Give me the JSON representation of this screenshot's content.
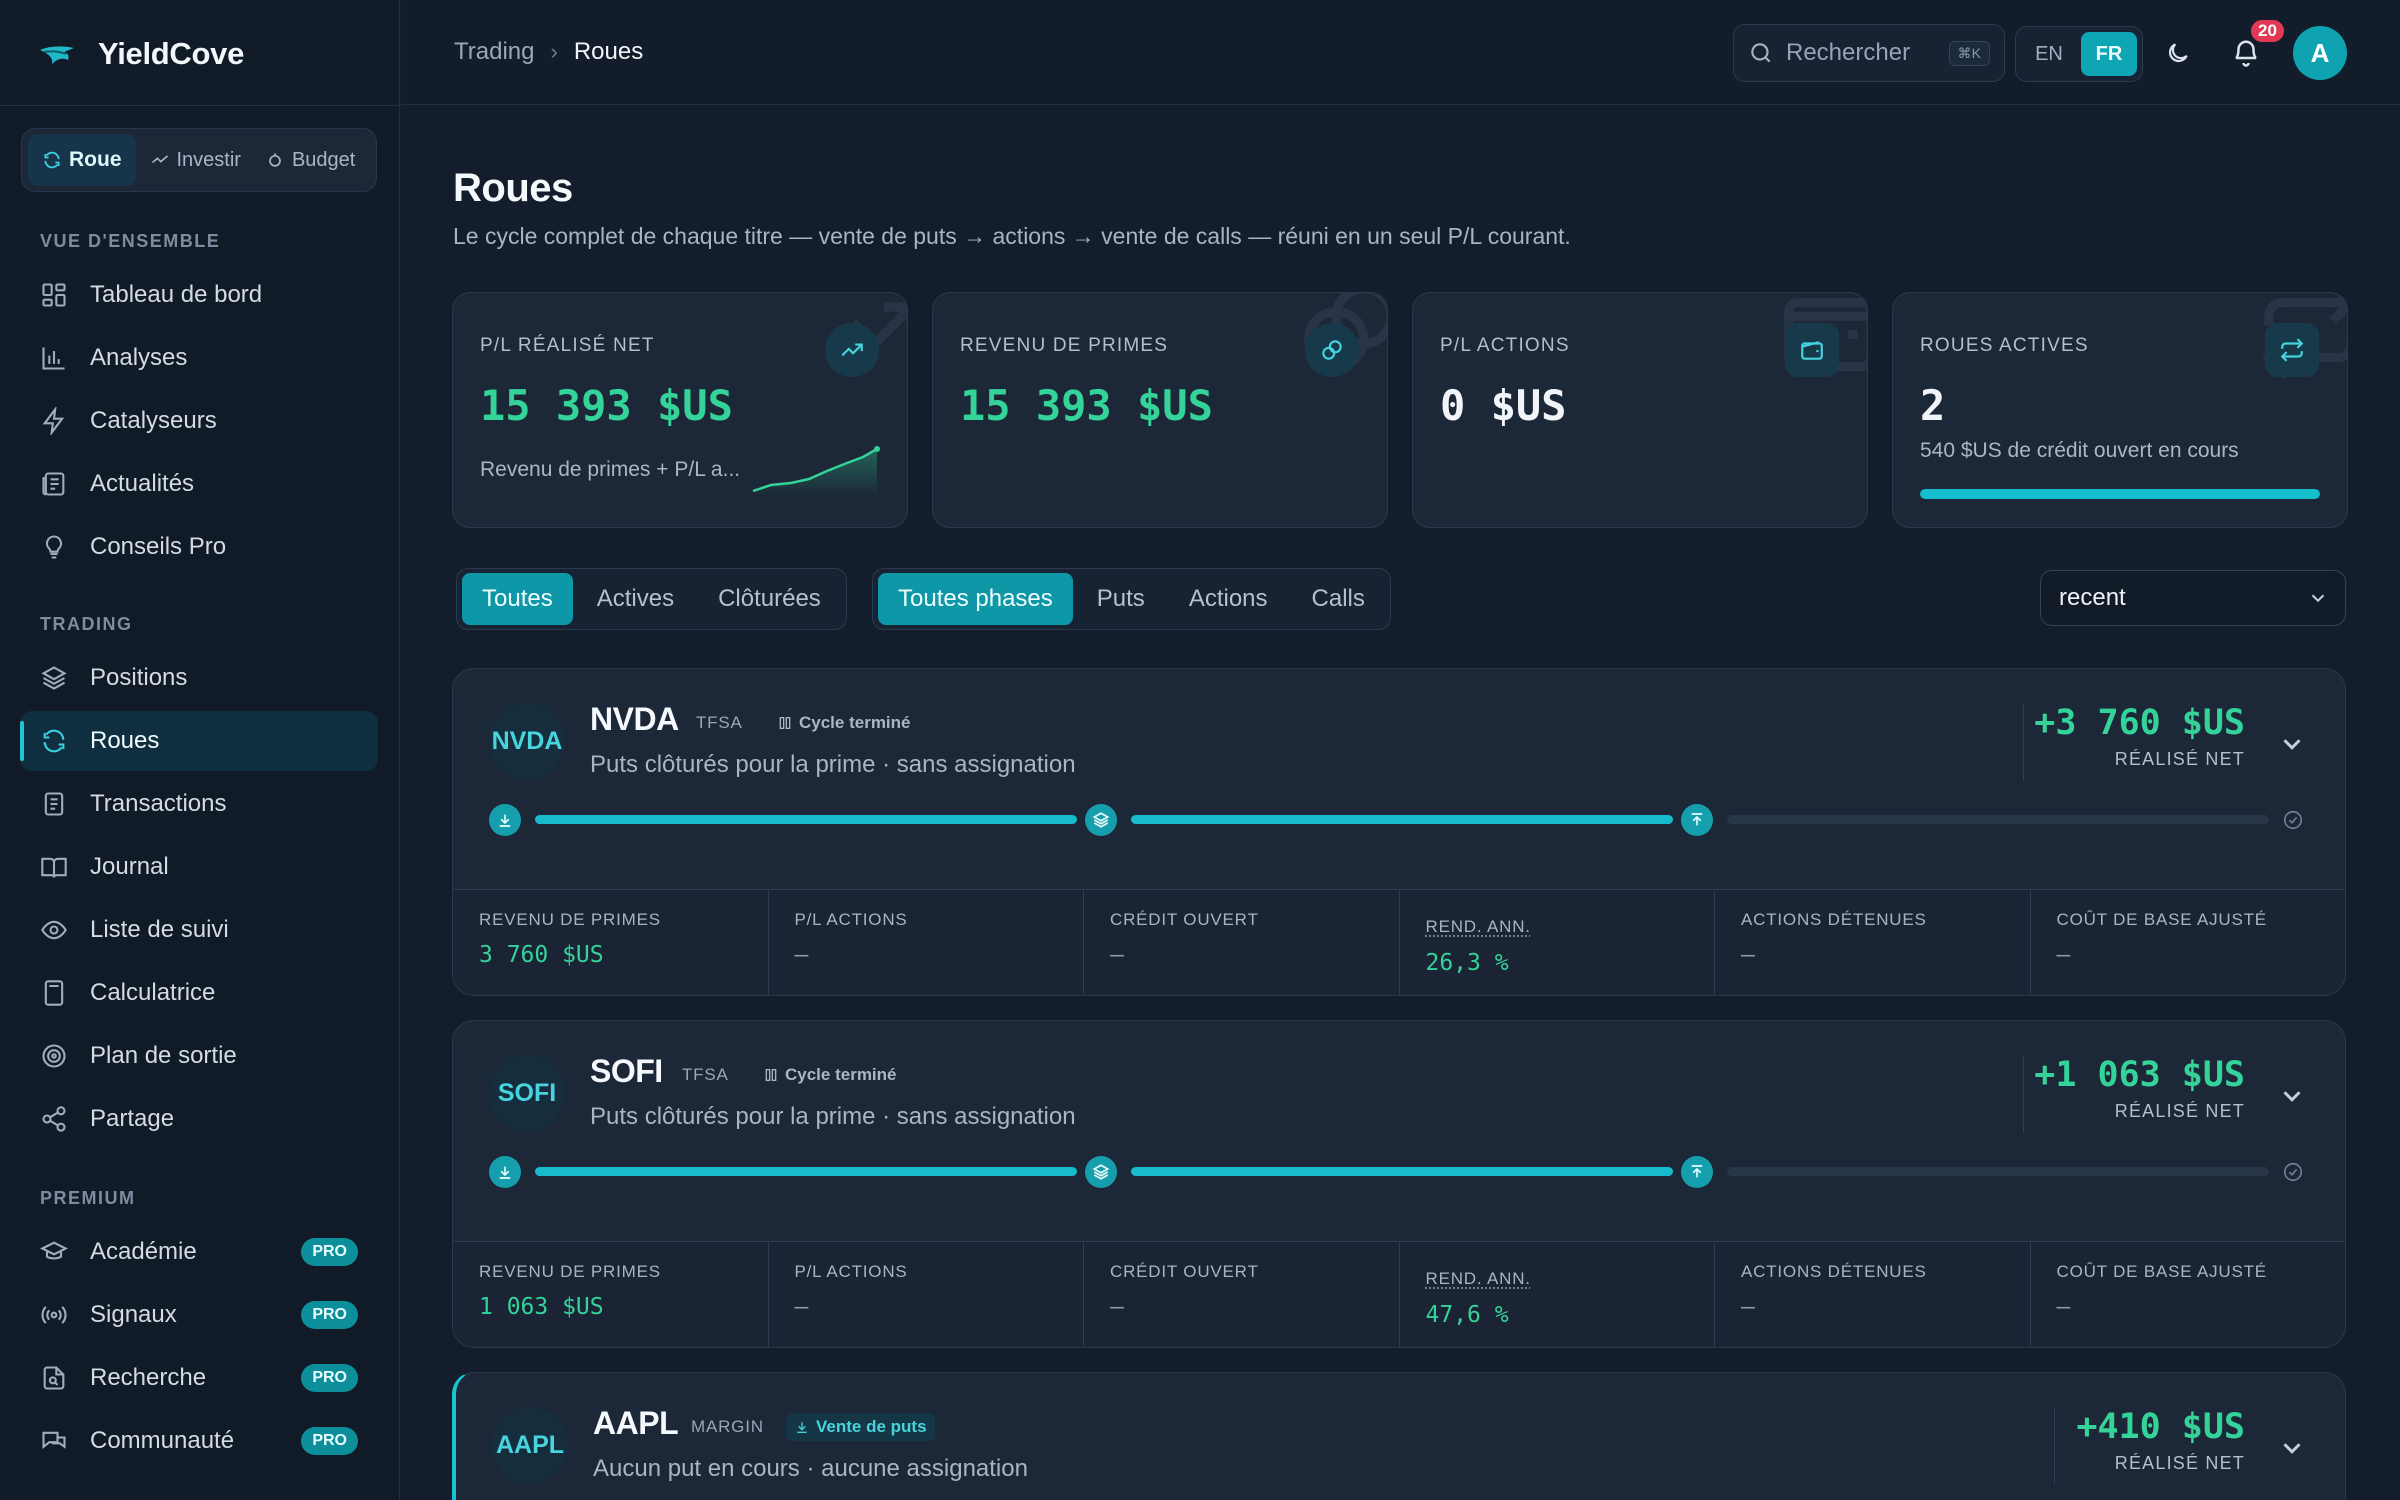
{
  "app": {
    "name": "YieldCove"
  },
  "modes": [
    {
      "label": "Roue",
      "active": true
    },
    {
      "label": "Investir",
      "active": false
    },
    {
      "label": "Budget",
      "active": false
    }
  ],
  "sidebar": {
    "sections": {
      "overview": "VUE D'ENSEMBLE",
      "trading": "TRADING",
      "premium": "PREMIUM"
    },
    "overview_items": [
      {
        "label": "Tableau de bord",
        "icon": "dashboard-icon"
      },
      {
        "label": "Analyses",
        "icon": "bar-chart-icon"
      },
      {
        "label": "Catalyseurs",
        "icon": "bolt-icon"
      },
      {
        "label": "Actualités",
        "icon": "newspaper-icon"
      },
      {
        "label": "Conseils Pro",
        "icon": "lightbulb-icon"
      }
    ],
    "trading_items": [
      {
        "label": "Positions",
        "icon": "layers-icon"
      },
      {
        "label": "Roues",
        "icon": "refresh-icon",
        "active": true
      },
      {
        "label": "Transactions",
        "icon": "receipt-icon"
      },
      {
        "label": "Journal",
        "icon": "book-icon"
      },
      {
        "label": "Liste de suivi",
        "icon": "eye-icon"
      },
      {
        "label": "Calculatrice",
        "icon": "calculator-icon"
      },
      {
        "label": "Plan de sortie",
        "icon": "target-icon"
      },
      {
        "label": "Partage",
        "icon": "share-icon"
      }
    ],
    "premium_items": [
      {
        "label": "Académie",
        "icon": "graduation-icon",
        "badge": "PRO"
      },
      {
        "label": "Signaux",
        "icon": "broadcast-icon",
        "badge": "PRO"
      },
      {
        "label": "Recherche",
        "icon": "file-search-icon",
        "badge": "PRO"
      },
      {
        "label": "Communauté",
        "icon": "chat-icon",
        "badge": "PRO"
      }
    ]
  },
  "header": {
    "breadcrumb": [
      "Trading",
      "Roues"
    ],
    "search_placeholder": "Rechercher",
    "search_shortcut": "⌘K",
    "languages": [
      "EN",
      "FR"
    ],
    "active_language": "FR",
    "notifications": "20",
    "avatar_initial": "A"
  },
  "page": {
    "title": "Roues",
    "subtitle": "Le cycle complet de chaque titre — vente de puts → actions → vente de calls — réuni en un seul P/L courant."
  },
  "stats": [
    {
      "label": "P/L RÉALISÉ NET",
      "value": "15 393  $US",
      "note": "Revenu de primes + P/L a...",
      "icon": "trending-up-icon",
      "color": "green"
    },
    {
      "label": "REVENU DE PRIMES",
      "value": "15 393  $US",
      "note": "",
      "icon": "coins-icon",
      "color": "green"
    },
    {
      "label": "P/L ACTIONS",
      "value": "0  $US",
      "note": "",
      "icon": "wallet-icon",
      "color": "white"
    },
    {
      "label": "ROUES ACTIVES",
      "value": "2",
      "note": "540 $US de crédit ouvert en cours",
      "icon": "repeat-icon",
      "color": "white",
      "progress": 1.0
    }
  ],
  "filters": {
    "status": [
      "Toutes",
      "Actives",
      "Clôturées"
    ],
    "status_active": "Toutes",
    "phase": [
      "Toutes phases",
      "Puts",
      "Actions",
      "Calls"
    ],
    "phase_active": "Toutes phases",
    "sort_value": "recent"
  },
  "metric_labels": [
    "REVENU DE PRIMES",
    "P/L ACTIONS",
    "CRÉDIT OUVERT",
    "REND. ANN.",
    "ACTIONS DÉTENUES",
    "COÛT DE BASE AJUSTÉ"
  ],
  "wheels": [
    {
      "ticker": "NVDA",
      "account": "TFSA",
      "phase": "Cycle terminé",
      "description": "Puts clôturés pour la prime · sans assignation",
      "pl": "+3 760  $US",
      "pl_label": "RÉALISÉ NET",
      "metrics": [
        "3 760  $US",
        "—",
        "—",
        "26,3 %",
        "—",
        "—"
      ]
    },
    {
      "ticker": "SOFI",
      "account": "TFSA",
      "phase": "Cycle terminé",
      "description": "Puts clôturés pour la prime · sans assignation",
      "pl": "+1 063  $US",
      "pl_label": "RÉALISÉ NET",
      "metrics": [
        "1 063  $US",
        "—",
        "—",
        "47,6 %",
        "—",
        "—"
      ]
    },
    {
      "ticker": "AAPL",
      "account": "MARGIN",
      "phase": "Vente de puts",
      "description": "Aucun put en cours · aucune assignation",
      "pl": "+410  $US",
      "pl_label": "RÉALISÉ NET"
    }
  ],
  "colors": {
    "accent": "#0ea5b4",
    "positive": "#34d399",
    "badge": "#e23a55"
  }
}
